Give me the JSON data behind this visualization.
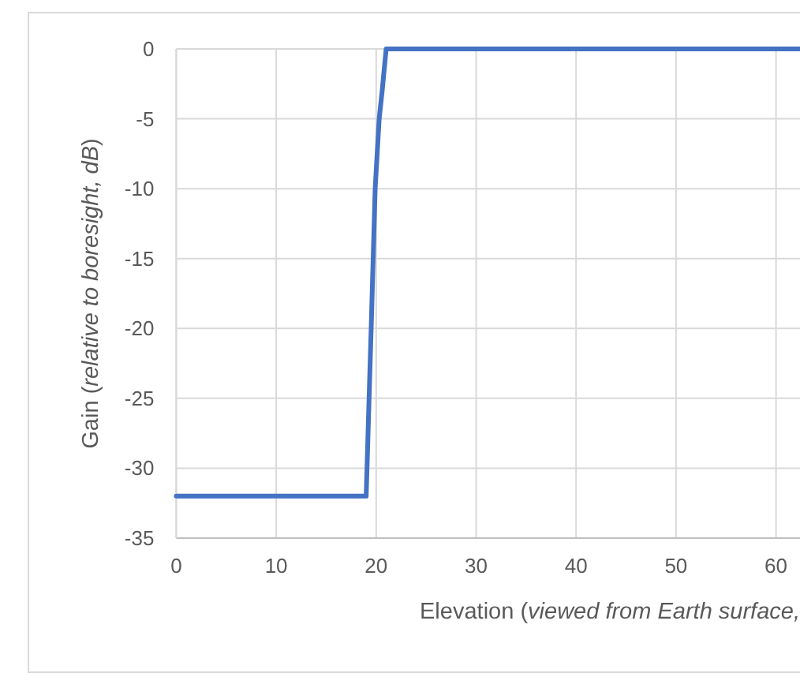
{
  "chart_data": {
    "type": "line",
    "xlabel": "Elevation (viewed from Earth surface,",
    "ylabel": "Gain (relative to boresight, dB)",
    "x": [
      0,
      19,
      19.5,
      19.9,
      20.3,
      20.6,
      21,
      62.4
    ],
    "series": [
      {
        "color": "#4472c4",
        "values": [
          -32,
          -32,
          -20,
          -10,
          -5,
          -3,
          0,
          0
        ]
      }
    ],
    "xlim": [
      0,
      62.4
    ],
    "xticks": [
      0,
      10,
      20,
      30,
      40,
      50,
      60
    ],
    "ylim": [
      -35,
      0
    ],
    "yticks": [
      0,
      -5,
      -10,
      -15,
      -20,
      -25,
      -30,
      -35
    ],
    "grid": true,
    "line_style": "solid",
    "marker": "none"
  }
}
